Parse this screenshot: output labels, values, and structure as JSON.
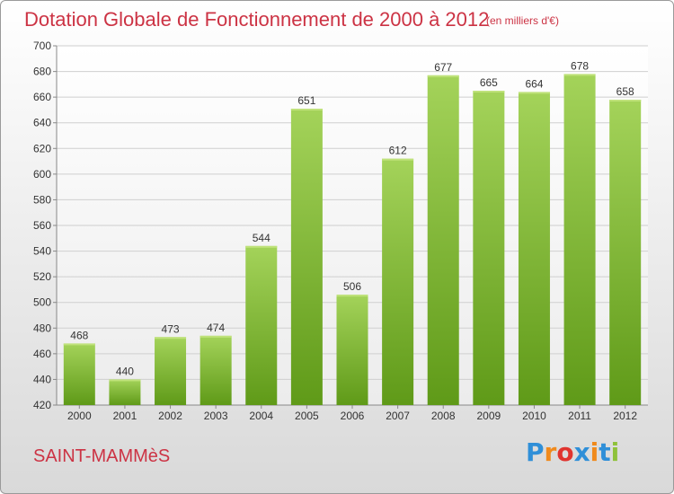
{
  "header": {
    "title": "Dotation Globale de Fonctionnement de 2000 à 2012",
    "unit": "(en milliers d'€)"
  },
  "footer": {
    "commune": "SAINT-MAMMèS",
    "logo_text": "Proxiti",
    "logo_colors": [
      "#2f8fd8",
      "#f08a1c",
      "#e0342f",
      "#2f8fd8",
      "#f08a1c",
      "#2f8fd8",
      "#8fc23a"
    ]
  },
  "colors": {
    "bar_light": "#a4d35a",
    "bar_dark": "#5f9a18",
    "title": "#cc3344",
    "grid": "#cfcfcf"
  },
  "chart_data": {
    "type": "bar",
    "categories": [
      "2000",
      "2001",
      "2002",
      "2003",
      "2004",
      "2005",
      "2006",
      "2007",
      "2008",
      "2009",
      "2010",
      "2011",
      "2012"
    ],
    "values": [
      468,
      440,
      473,
      474,
      544,
      651,
      506,
      612,
      677,
      665,
      664,
      678,
      658
    ],
    "title": "Dotation Globale de Fonctionnement de 2000 à 2012",
    "subtitle": "(en milliers d'€)",
    "ylim": [
      420,
      700
    ],
    "yticks": [
      420,
      440,
      460,
      480,
      500,
      520,
      540,
      560,
      580,
      600,
      620,
      640,
      660,
      680,
      700
    ],
    "grid": true
  }
}
